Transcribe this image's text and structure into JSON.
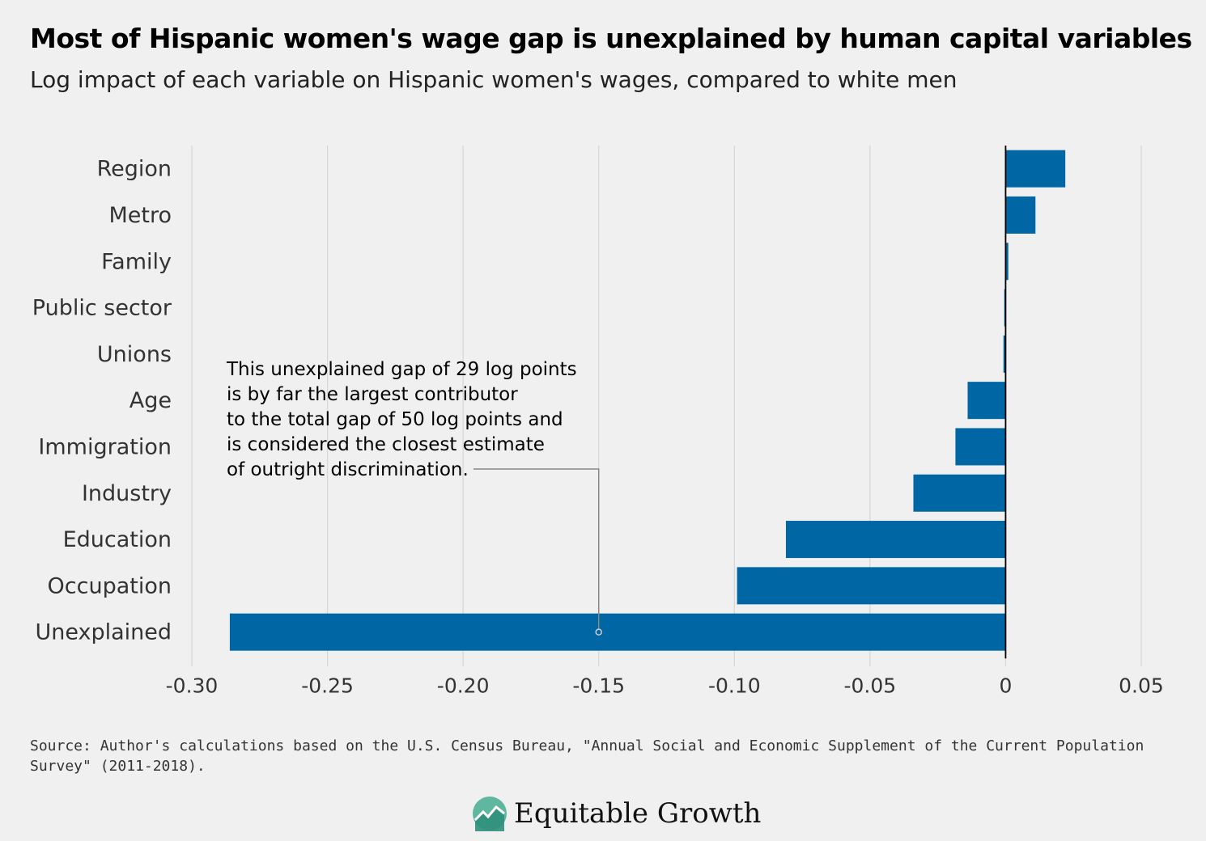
{
  "header": {
    "title": "Most of Hispanic women's wage gap is unexplained by human capital variables",
    "subtitle": "Log impact of each variable on Hispanic women's wages, compared to white men"
  },
  "chart_data": {
    "type": "bar",
    "orientation": "horizontal",
    "categories": [
      "Region",
      "Metro",
      "Family",
      "Public sector",
      "Unions",
      "Age",
      "Immigration",
      "Industry",
      "Education",
      "Occupation",
      "Unexplained"
    ],
    "values": [
      0.022,
      0.011,
      0.001,
      -0.0005,
      -0.0008,
      -0.014,
      -0.0185,
      -0.034,
      -0.081,
      -0.099,
      -0.286
    ],
    "xlim": [
      -0.3,
      0.05
    ],
    "xticks": [
      -0.3,
      -0.25,
      -0.2,
      -0.15,
      -0.1,
      -0.05,
      0,
      0.05
    ],
    "xtick_labels": [
      "-0.30",
      "-0.25",
      "-0.20",
      "-0.15",
      "-0.10",
      "-0.05",
      "0",
      "0.05"
    ],
    "bar_color": "#0066a4",
    "grid": true,
    "annotation": {
      "text": "This unexplained gap of 29 log points\nis by far the largest contributor\nto the total gap of 50 log points and\nis considered the closest estimate\nof outright discrimination.",
      "points_to": "Unexplained",
      "at_value": -0.15
    }
  },
  "footer": {
    "source": "Source: Author's calculations based on the U.S. Census Bureau, \"Annual Social and Economic Supplement of the Current Population Survey\" (2011-2018).",
    "logo_text": "Equitable Growth",
    "logo_colors": [
      "#5fb7a0",
      "#2e8f7a"
    ]
  }
}
